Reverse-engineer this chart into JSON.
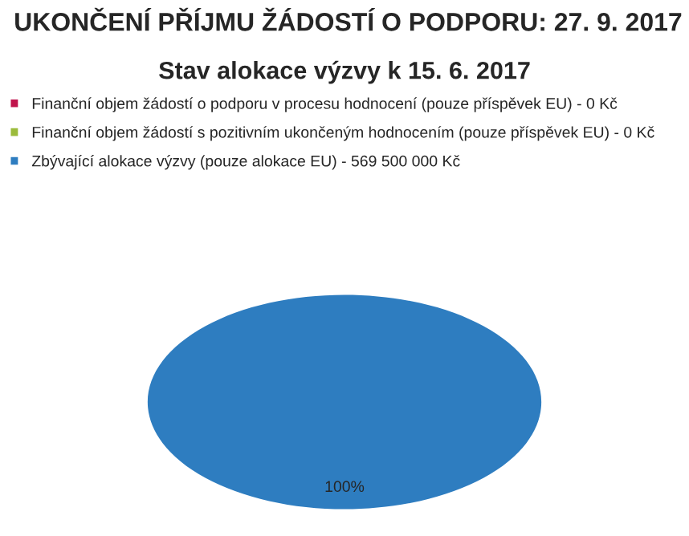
{
  "chart_data": {
    "type": "pie",
    "title": "UKONČENÍ PŘÍJMU ŽÁDOSTÍ O PODPORU: 27. 9. 2017",
    "subtitle": "Stav alokace výzvy k 15. 6. 2017",
    "categories": [
      "Finanční objem žádostí o podporu v procesu hodnocení (pouze příspěvek EU) - 0 Kč",
      "Finanční objem žádostí s pozitivním ukončeným hodnocením (pouze příspěvek EU) - 0 Kč",
      "Zbývající alokace výzvy (pouze alokace EU) - 569 500 000 Kč"
    ],
    "values": [
      0,
      0,
      100
    ],
    "colors": [
      "#c0144c",
      "#9bbb3c",
      "#2e7dc0"
    ],
    "value_labels": [
      null,
      null,
      "100%"
    ],
    "legend": "top"
  }
}
